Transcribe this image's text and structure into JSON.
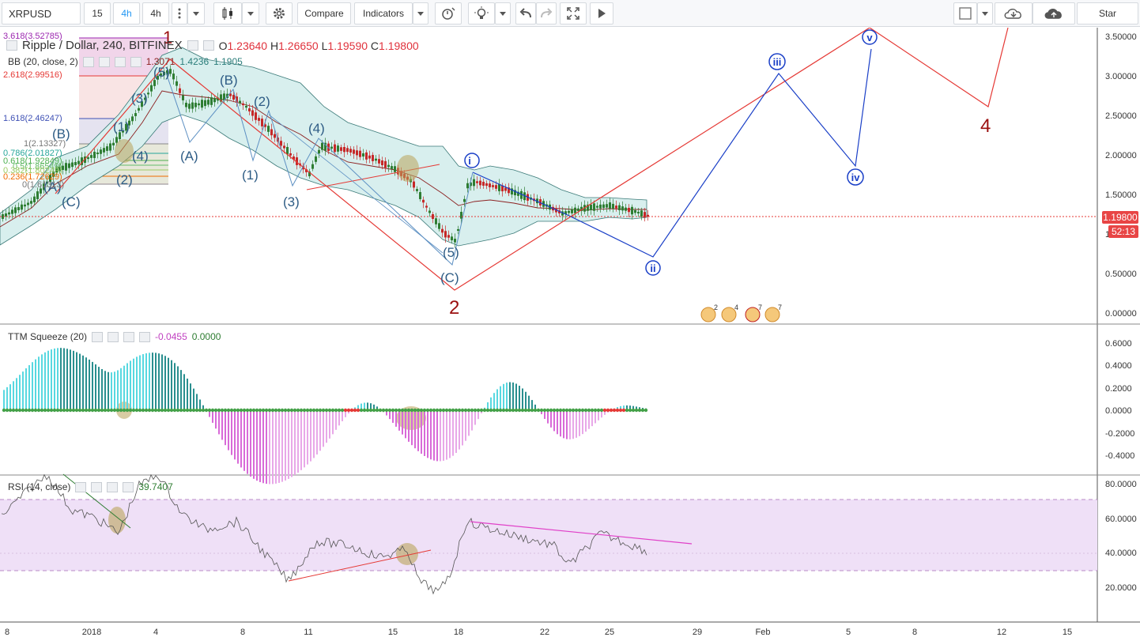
{
  "toolbar": {
    "symbol": "XRPUSD",
    "interval_15": "15",
    "interval_4h_active": "4h",
    "interval_4h": "4h",
    "compare": "Compare",
    "indicators": "Indicators",
    "star": "Star"
  },
  "main_legend": {
    "title": "Ripple / Dollar, 240, BITFINEX",
    "o_label": "O",
    "o": "1.23640",
    "h_label": "H",
    "h": "1.26650",
    "l_label": "L",
    "l": "1.19590",
    "c_label": "C",
    "c": "1.19800"
  },
  "bb_legend": {
    "name": "BB (20, close, 2)",
    "v1": "1.3071",
    "v2": "1.4236",
    "v3": "1.1905"
  },
  "ttm_legend": {
    "name": "TTM Squeeze (20)",
    "v1": "-0.0455",
    "v2": "0.0000"
  },
  "rsi_legend": {
    "name": "RSI (14, close)",
    "v1": "39.7407"
  },
  "price_axis": [
    "3.50000",
    "3.00000",
    "2.50000",
    "2.00000",
    "1.50000",
    "1",
    "0.50000",
    "0.00000"
  ],
  "price_tags": {
    "last": "1.19800",
    "countdown": "52:13"
  },
  "ttm_axis": [
    "0.6000",
    "0.4000",
    "0.2000",
    "0.0000",
    "-0.2000",
    "-0.4000"
  ],
  "rsi_axis": [
    "80.0000",
    "60.0000",
    "40.0000",
    "20.0000"
  ],
  "time_axis": [
    "8",
    "2018",
    "4",
    "8",
    "11",
    "15",
    "18",
    "22",
    "25",
    "29",
    "Feb",
    "5",
    "8",
    "12",
    "15"
  ],
  "fib_labels": [
    "3.618(3.52785)",
    "2.618(2.99516)",
    "1.618(2.46247)",
    "1(2.13327)",
    "0.786(2.01827)",
    "0.618(1.92849)",
    "0.5(1.86549)",
    "0.382(1.80249)",
    "0.236(1.72629)",
    "0(1.61313)"
  ],
  "wave_labels": {
    "w1": "1",
    "w2": "2",
    "w4": "4",
    "i": "i",
    "ii": "ii",
    "iii": "iii",
    "iv": "iv",
    "v": "v",
    "p1": "(1)",
    "p2": "(2)",
    "p3": "(3)",
    "p4": "(4)",
    "p5": "(5)",
    "pA": "(A)",
    "pB": "(B)",
    "pC": "(C)"
  },
  "event_badges": [
    "2",
    "4",
    "7",
    "7"
  ],
  "colors": {
    "up": "#2e7d32",
    "down": "#c62828",
    "bb_fill": "#d8efee",
    "rsi_band": "#efe0f7",
    "red_line": "#e53935",
    "blue_line": "#1a3fc7",
    "dark_red": "#9b0f0f"
  }
}
